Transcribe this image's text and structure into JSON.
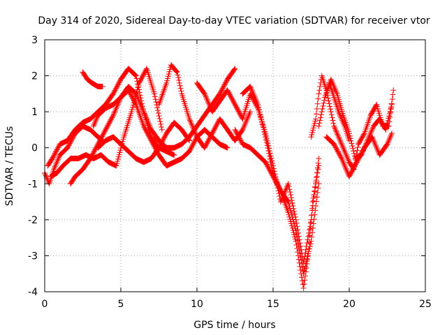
{
  "chart_data": {
    "type": "scatter",
    "title": "Day 314 of 2020, Sidereal Day-to-day VTEC variation (SDTVAR) for receiver vtor",
    "xlabel": "GPS time / hours",
    "ylabel": "SDTVAR / TECUs",
    "xlim": [
      0,
      25
    ],
    "ylim": [
      -4,
      3
    ],
    "xticks": [
      0,
      5,
      10,
      15,
      20,
      25
    ],
    "yticks": [
      -4,
      -3,
      -2,
      -1,
      0,
      1,
      2,
      3
    ],
    "grid": true,
    "marker": "+",
    "series": [
      {
        "name": "SDTVAR",
        "color": "#ff0000",
        "segments": [
          {
            "x": [
              0.0,
              0.3,
              0.6,
              1.0,
              1.5,
              2.0,
              2.5,
              3.0,
              3.5,
              3.8
            ],
            "y": [
              -0.7,
              -1.0,
              -0.6,
              -0.2,
              0.0,
              0.4,
              0.6,
              0.5,
              0.3,
              0.2
            ]
          },
          {
            "x": [
              0.2,
              0.5,
              1.0,
              1.5,
              2.0,
              2.5,
              3.0,
              3.5,
              4.0,
              4.5,
              5.0,
              5.5,
              6.0,
              6.5,
              7.0,
              7.5,
              8.0,
              8.5
            ],
            "y": [
              -0.5,
              -0.3,
              0.1,
              0.2,
              0.5,
              0.7,
              0.8,
              1.0,
              1.2,
              1.5,
              1.9,
              2.2,
              2.0,
              1.0,
              0.3,
              0.0,
              -0.1,
              -0.2
            ]
          },
          {
            "x": [
              0.4,
              0.8,
              1.2,
              1.7,
              2.2,
              2.7,
              3.2,
              3.7,
              4.2,
              4.7,
              5.2,
              5.7,
              6.2,
              6.7,
              7.2,
              7.7
            ],
            "y": [
              -0.8,
              -0.7,
              -0.5,
              -0.3,
              -0.3,
              -0.2,
              -0.3,
              -0.2,
              -0.4,
              -0.5,
              0.3,
              1.0,
              1.8,
              2.2,
              1.5,
              0.5
            ]
          },
          {
            "x": [
              1.7,
              2.0,
              2.5,
              3.0,
              3.5,
              4.0,
              4.5,
              5.0,
              5.5,
              6.0,
              6.5,
              7.0,
              7.5,
              8.0,
              8.5,
              9.0,
              9.5,
              10.0,
              10.5,
              11.0,
              11.5,
              12.0,
              12.5
            ],
            "y": [
              -1.0,
              -0.8,
              -0.6,
              -0.3,
              0.1,
              0.5,
              0.9,
              1.4,
              1.7,
              1.5,
              1.0,
              0.5,
              0.2,
              0.0,
              0.0,
              0.1,
              0.3,
              0.6,
              0.9,
              1.2,
              1.5,
              1.9,
              2.2
            ]
          },
          {
            "x": [
              2.5,
              2.8,
              3.1,
              3.5,
              3.8
            ],
            "y": [
              2.1,
              1.9,
              1.8,
              1.7,
              1.7
            ]
          },
          {
            "x": [
              3.2,
              3.5,
              4.0,
              4.5,
              5.0,
              5.5,
              6.0,
              6.5,
              7.0,
              7.5,
              8.0,
              8.5,
              9.0,
              9.5,
              10.0,
              10.5,
              11.0,
              11.5,
              12.0
            ],
            "y": [
              0.6,
              0.9,
              1.1,
              1.2,
              1.4,
              1.6,
              1.2,
              0.6,
              0.2,
              -0.2,
              -0.5,
              -0.4,
              -0.3,
              -0.1,
              0.3,
              0.5,
              0.3,
              0.1,
              0.0
            ]
          },
          {
            "x": [
              7.5,
              8.0,
              8.3,
              8.7,
              9.0,
              9.5,
              10.0,
              10.5,
              11.0,
              11.5,
              12.0,
              12.5,
              13.0,
              13.5
            ],
            "y": [
              1.2,
              1.8,
              2.3,
              2.1,
              1.5,
              0.8,
              0.3,
              0.0,
              0.4,
              0.8,
              0.5,
              0.2,
              0.5,
              1.0
            ]
          },
          {
            "x": [
              3.5,
              4.0,
              4.5,
              5.0,
              5.5,
              6.0,
              6.5,
              7.0,
              7.5,
              8.0,
              8.5,
              9.0,
              9.5
            ],
            "y": [
              0.0,
              0.2,
              0.3,
              0.1,
              -0.1,
              -0.3,
              -0.4,
              -0.3,
              0.0,
              0.4,
              0.7,
              0.5,
              0.2
            ]
          },
          {
            "x": [
              10.0,
              10.5,
              11.0,
              11.5,
              12.0,
              12.5,
              13.0,
              13.5,
              14.0,
              14.5,
              15.0,
              15.5,
              16.0,
              16.5,
              17.0,
              17.5,
              18.0
            ],
            "y": [
              1.8,
              1.5,
              1.0,
              1.3,
              1.6,
              1.2,
              0.8,
              1.5,
              1.1,
              0.4,
              -0.5,
              -1.5,
              -1.0,
              -2.0,
              -3.2,
              -2.0,
              -0.3
            ]
          },
          {
            "x": [
              12.5,
              13.0,
              13.5,
              14.0,
              14.5,
              15.0,
              15.5,
              16.0,
              16.5,
              16.8,
              17.0,
              17.3,
              17.6,
              18.0
            ],
            "y": [
              0.5,
              0.1,
              0.0,
              -0.2,
              -0.4,
              -0.8,
              -1.2,
              -1.8,
              -2.6,
              -3.4,
              -3.9,
              -3.0,
              -1.5,
              -0.5
            ]
          },
          {
            "x": [
              13.0,
              13.5,
              14.0,
              14.5,
              15.0,
              15.5,
              16.0,
              16.5,
              17.0,
              17.5,
              18.0
            ],
            "y": [
              1.5,
              1.7,
              1.2,
              0.3,
              -0.7,
              -1.2,
              -1.5,
              -2.3,
              -3.5,
              -2.6,
              -1.0
            ]
          },
          {
            "x": [
              17.5,
              17.8,
              18.0,
              18.2,
              18.5,
              18.8,
              19.0,
              19.3,
              19.6,
              20.0,
              20.3,
              20.6,
              21.0,
              21.4,
              21.8,
              22.2,
              22.6,
              22.9
            ],
            "y": [
              0.3,
              0.8,
              1.5,
              2.0,
              1.6,
              1.0,
              0.6,
              0.3,
              0.0,
              -0.4,
              -0.6,
              0.1,
              0.4,
              0.9,
              1.2,
              0.6,
              0.6,
              1.6
            ]
          },
          {
            "x": [
              18.0,
              18.4,
              18.8,
              19.2,
              19.6,
              20.0,
              20.4,
              20.8,
              21.2,
              21.6,
              22.0,
              22.4,
              22.8
            ],
            "y": [
              0.6,
              1.4,
              1.9,
              1.5,
              0.9,
              0.4,
              -0.3,
              -0.2,
              0.2,
              0.6,
              0.8,
              0.5,
              1.2
            ]
          },
          {
            "x": [
              18.5,
              19.0,
              19.5,
              20.0,
              20.5,
              21.0,
              21.5,
              22.0,
              22.5,
              22.8
            ],
            "y": [
              0.3,
              0.1,
              -0.3,
              -0.8,
              -0.4,
              0.0,
              0.3,
              -0.2,
              0.1,
              0.4
            ]
          },
          {
            "x": [
              18.7,
              19.0,
              19.3,
              19.7,
              20.0
            ],
            "y": [
              1.8,
              1.4,
              1.0,
              0.6,
              0.2
            ]
          }
        ]
      }
    ]
  }
}
